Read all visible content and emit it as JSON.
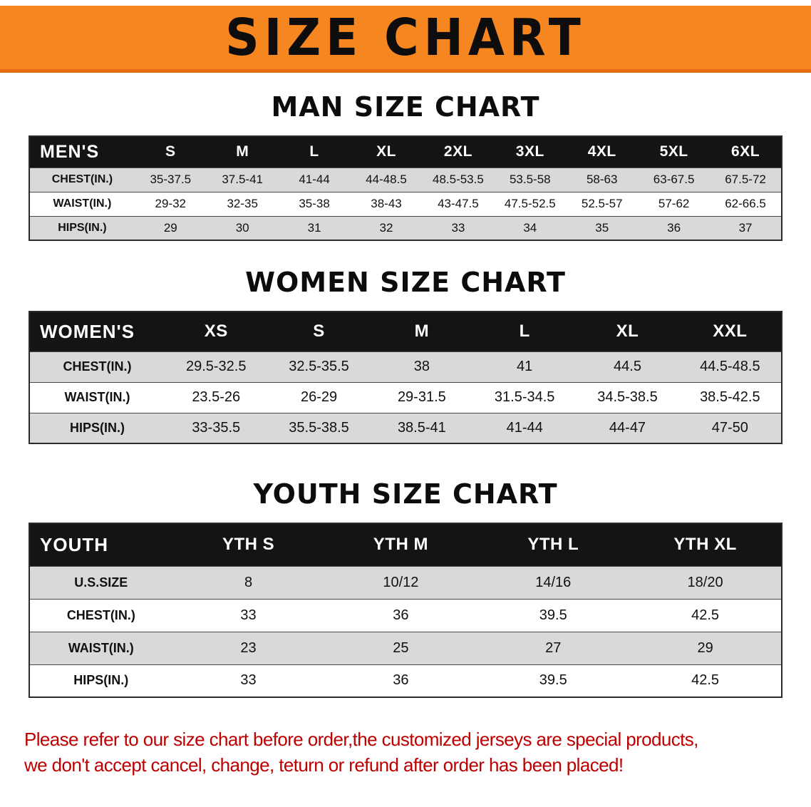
{
  "banner": {
    "title": "SIZE CHART"
  },
  "colors": {
    "accent_orange": "#F6861F",
    "header_black": "#141414",
    "row_gray": "#D9D9D9",
    "notice_red": "#BD0000"
  },
  "sections": {
    "men": {
      "heading": "MAN SIZE CHART",
      "table": {
        "label": "MEN'S",
        "columns": [
          "S",
          "M",
          "L",
          "XL",
          "2XL",
          "3XL",
          "4XL",
          "5XL",
          "6XL"
        ],
        "rows": [
          {
            "label": "CHEST(IN.)",
            "values": [
              "35-37.5",
              "37.5-41",
              "41-44",
              "44-48.5",
              "48.5-53.5",
              "53.5-58",
              "58-63",
              "63-67.5",
              "67.5-72"
            ]
          },
          {
            "label": "WAIST(IN.)",
            "values": [
              "29-32",
              "32-35",
              "35-38",
              "38-43",
              "43-47.5",
              "47.5-52.5",
              "52.5-57",
              "57-62",
              "62-66.5"
            ]
          },
          {
            "label": "HIPS(IN.)",
            "values": [
              "29",
              "30",
              "31",
              "32",
              "33",
              "34",
              "35",
              "36",
              "37"
            ]
          }
        ]
      }
    },
    "women": {
      "heading": "WOMEN SIZE CHART",
      "table": {
        "label": "WOMEN'S",
        "columns": [
          "XS",
          "S",
          "M",
          "L",
          "XL",
          "XXL"
        ],
        "rows": [
          {
            "label": "CHEST(IN.)",
            "values": [
              "29.5-32.5",
              "32.5-35.5",
              "38",
              "41",
              "44.5",
              "44.5-48.5"
            ]
          },
          {
            "label": "WAIST(IN.)",
            "values": [
              "23.5-26",
              "26-29",
              "29-31.5",
              "31.5-34.5",
              "34.5-38.5",
              "38.5-42.5"
            ]
          },
          {
            "label": "HIPS(IN.)",
            "values": [
              "33-35.5",
              "35.5-38.5",
              "38.5-41",
              "41-44",
              "44-47",
              "47-50"
            ]
          }
        ]
      }
    },
    "youth": {
      "heading": "YOUTH SIZE CHART",
      "table": {
        "label": "YOUTH",
        "columns": [
          "YTH S",
          "YTH M",
          "YTH L",
          "YTH XL"
        ],
        "rows": [
          {
            "label": "U.S.SIZE",
            "values": [
              "8",
              "10/12",
              "14/16",
              "18/20"
            ]
          },
          {
            "label": "CHEST(IN.)",
            "values": [
              "33",
              "36",
              "39.5",
              "42.5"
            ]
          },
          {
            "label": "WAIST(IN.)",
            "values": [
              "23",
              "25",
              "27",
              "29"
            ]
          },
          {
            "label": "HIPS(IN.)",
            "values": [
              "33",
              "36",
              "39.5",
              "42.5"
            ]
          }
        ]
      }
    }
  },
  "notice": {
    "line1": "Please refer to our size chart before order,the customized jerseys are special products,",
    "line2": "we don't accept cancel, change, teturn or refund after order has been placed!"
  }
}
